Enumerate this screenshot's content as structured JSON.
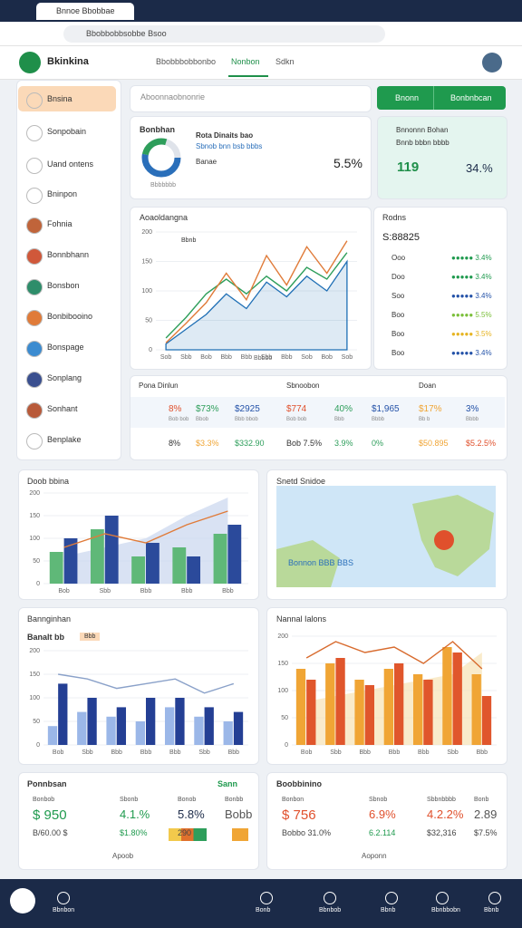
{
  "browser": {
    "tab": "Bnnoe Bbobbae",
    "url": "Bbobbobbsobbe Bsoo"
  },
  "header": {
    "brand": "Bkinkina",
    "nav": [
      "Bbobbbobbonbo",
      "Nonbon",
      "Sdkn"
    ]
  },
  "sidebar": [
    "Bnsina",
    "Sonpobain",
    "Uand ontens",
    "Bninpon",
    "Fohnia",
    "Bonnbhann",
    "Bonsbon",
    "Bonbibooino",
    "Bonspage",
    "Sonplang",
    "Sonhant",
    "Benplake"
  ],
  "search": {
    "placeholder": "Aboonnaobnonrie",
    "buttons": [
      "Bnonn",
      "Bonbnbcan"
    ]
  },
  "summary": {
    "title": "Bonbhan",
    "subtitle": "Rota Dinaits bao",
    "note": "Sbnob bnn bsb bbbs",
    "label": "Banae",
    "value": "5.5%",
    "caption": "Bbbbbbb"
  },
  "highlight": {
    "title": "Bnnonnn Bohan",
    "subtitle": "Bnnb bbbn bbbb",
    "value1": "119",
    "value2": "34.%"
  },
  "trend": {
    "title": "Aoaoldangna",
    "legend": "Bbnb",
    "xlabel": "Bbbbo",
    "chart": {
      "type": "line",
      "categories": [
        "Sob",
        "Sbb",
        "Bob",
        "Bbb",
        "Bbb",
        "Sbb",
        "Bbb",
        "Sob",
        "Bob",
        "Sob"
      ],
      "ylim": [
        0,
        200
      ],
      "yticks": [
        0,
        50,
        100,
        150,
        200
      ],
      "series": [
        {
          "type": "area",
          "color": "#1f6fb5",
          "values": [
            10,
            35,
            60,
            95,
            70,
            115,
            90,
            125,
            100,
            150
          ]
        },
        {
          "type": "line",
          "color": "#2e9e5b",
          "values": [
            20,
            55,
            95,
            120,
            95,
            125,
            100,
            140,
            120,
            165
          ]
        },
        {
          "type": "line",
          "color": "#e07b39",
          "values": [
            12,
            45,
            80,
            130,
            85,
            160,
            110,
            175,
            130,
            185
          ]
        }
      ]
    }
  },
  "ranks": {
    "title": "Rodns",
    "total": "S:88825",
    "rows": [
      [
        "Ooo",
        "●●●●● 3.4%"
      ],
      [
        "Doo",
        "●●●●● 3.4%"
      ],
      [
        "Soo",
        "●●●●● 3.4%"
      ],
      [
        "Boo",
        "●●●●● 5.5%"
      ],
      [
        "Boo",
        "●●●●● 3.5%"
      ],
      [
        "Boo",
        "●●●●● 3.4%"
      ]
    ]
  },
  "table": {
    "headers": [
      "Pona Dinlun",
      "Sbnoobon",
      "Doan"
    ],
    "row1": [
      "8%",
      "$73%",
      "$2925",
      "$774",
      "40%",
      "$1,965",
      "$17%",
      "3%"
    ],
    "row1sub": [
      "Bob bob",
      "Bbob",
      "Bbb bbob",
      "Bob bob",
      "Bbb",
      "Bbbb",
      "Bb b",
      "Bbbb"
    ],
    "row2": [
      "8%",
      "$3.3%",
      "$332.90",
      "Bob 7.5%",
      "3.9%",
      "0%",
      "$50.895",
      "$5.2.5%"
    ]
  },
  "combo": {
    "title": "Doob bbina",
    "chart": {
      "type": "bar",
      "categories": [
        "Bob",
        "Sbb",
        "Bbb",
        "Bbb",
        "Bbb"
      ],
      "ylim": [
        0,
        200
      ],
      "yticks": [
        0,
        50,
        100,
        150,
        200
      ],
      "series": [
        {
          "type": "area",
          "color": "#c9d6ee",
          "values": [
            60,
            80,
            100,
            150,
            190
          ]
        },
        {
          "type": "bar",
          "color": "#5fb878",
          "values": [
            70,
            120,
            60,
            80,
            110
          ]
        },
        {
          "type": "bar",
          "color": "#2b4a9b",
          "values": [
            100,
            150,
            90,
            60,
            130
          ]
        },
        {
          "type": "line",
          "color": "#e07b39",
          "values": [
            80,
            110,
            90,
            130,
            160
          ]
        }
      ]
    }
  },
  "map": {
    "title": "Snetd Snidoe",
    "caption": "Bonnon BBB BBS"
  },
  "segments": {
    "title": "Bannginhan",
    "subtitle": "Banalt bb",
    "badge": "Bbb",
    "chart": {
      "type": "bar",
      "categories": [
        "Bob",
        "Sbb",
        "Bbb",
        "Bbb",
        "Bbb",
        "Sbb",
        "Bbb"
      ],
      "ylim": [
        0,
        200
      ],
      "yticks": [
        0,
        50,
        100,
        150,
        200
      ],
      "series": [
        {
          "type": "bar",
          "color": "#9bb7e8",
          "values": [
            40,
            70,
            60,
            50,
            80,
            60,
            50
          ]
        },
        {
          "type": "bar",
          "color": "#243f94",
          "values": [
            130,
            100,
            80,
            100,
            100,
            80,
            70
          ]
        },
        {
          "type": "line",
          "color": "#8aa1c9",
          "values": [
            150,
            140,
            120,
            130,
            140,
            110,
            130
          ]
        }
      ]
    }
  },
  "annual": {
    "title": "Nannal Ialons",
    "chart": {
      "type": "bar",
      "categories": [
        "Bob",
        "Sbb",
        "Bbb",
        "Bbb",
        "Bbb",
        "Sbb",
        "Bbb"
      ],
      "ylim": [
        0,
        200
      ],
      "yticks": [
        0,
        50,
        100,
        150,
        200
      ],
      "series": [
        {
          "type": "area",
          "color": "#f6e3b5",
          "values": [
            80,
            90,
            100,
            110,
            120,
            130,
            170
          ]
        },
        {
          "type": "bar",
          "color": "#f0a535",
          "values": [
            140,
            150,
            120,
            140,
            130,
            180,
            130
          ]
        },
        {
          "type": "bar",
          "color": "#e0562c",
          "values": [
            120,
            160,
            110,
            150,
            120,
            170,
            90
          ]
        },
        {
          "type": "line",
          "color": "#d86b2e",
          "values": [
            160,
            190,
            170,
            180,
            150,
            190,
            140
          ]
        }
      ]
    }
  },
  "left_stats": {
    "title": "Ponnbsan",
    "badge": "Sann",
    "heads": [
      "Bonbob",
      "Sbonb",
      "Bonob",
      "Bonbb"
    ],
    "values": [
      "$ 950",
      "4.1.%",
      "5.8%",
      "Bobb"
    ],
    "subs": [
      "B/60.00 $",
      "$1.80%",
      "290"
    ],
    "footer": "Apoob"
  },
  "right_stats": {
    "title": "Boobbinino",
    "heads": [
      "Bonbon",
      "Sbnob",
      "Sbbnbbbb",
      "Bonb"
    ],
    "values": [
      "$ 756",
      "6.9%",
      "4.2.2%",
      "2.89"
    ],
    "subs": [
      "Bobbo 31.0%",
      "6.2.114",
      "$32,316",
      "$7.5%"
    ],
    "footer": "Aoponn"
  },
  "bottom_nav": [
    "Bbnbon",
    "Bonb",
    "Bbnbob",
    "Bbnb",
    "Bbnbbobn",
    "Bbnb"
  ]
}
